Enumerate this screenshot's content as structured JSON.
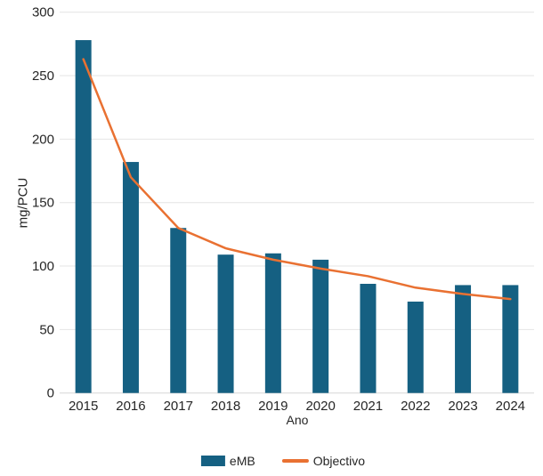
{
  "chart_data": {
    "type": "bar",
    "title": "",
    "categories": [
      "2015",
      "2016",
      "2017",
      "2018",
      "2019",
      "2020",
      "2021",
      "2022",
      "2023",
      "2024"
    ],
    "series": [
      {
        "name": "eMB",
        "type": "bar",
        "color": "#156082",
        "values": [
          278,
          182,
          130,
          109,
          110,
          105,
          86,
          72,
          85,
          85
        ]
      },
      {
        "name": "Objectivo",
        "type": "line",
        "color": "#E97132",
        "values": [
          263,
          170,
          130,
          114,
          105,
          98,
          92,
          83,
          78,
          74
        ]
      }
    ],
    "xlabel": "Ano",
    "ylabel": "mg/PCU",
    "ylim": [
      0,
      300
    ],
    "y_ticks": [
      0,
      50,
      100,
      150,
      200,
      250,
      300
    ],
    "grid": true,
    "legend_position": "bottom"
  },
  "colors": {
    "bar": "#156082",
    "line": "#E97132",
    "gridline": "#E4E4E4",
    "axis_line": "#D5D5D5",
    "text": "#262626",
    "background": "#FFFFFF"
  }
}
